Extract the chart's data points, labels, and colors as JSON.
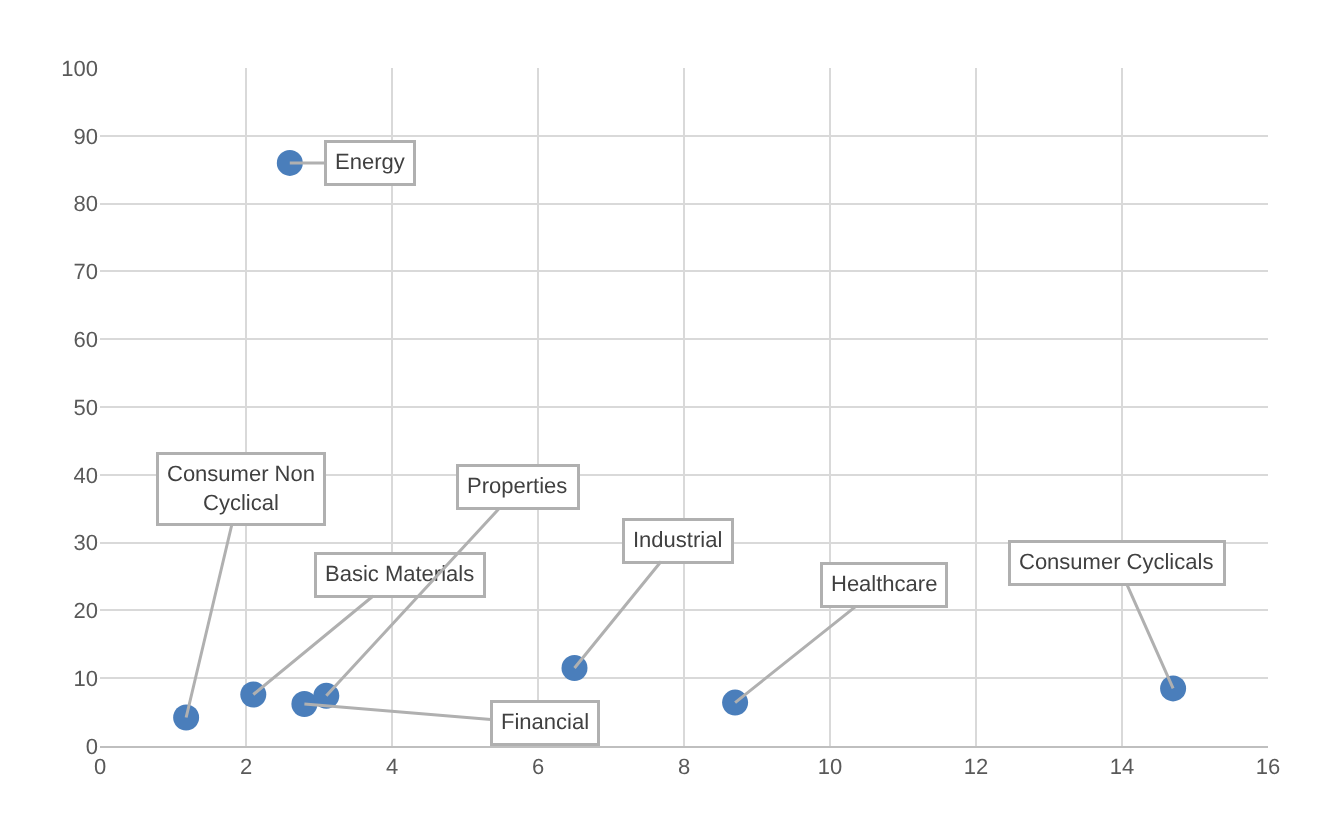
{
  "chart_data": {
    "type": "scatter",
    "marker": "circle",
    "grid": true,
    "xlim": [
      0,
      16
    ],
    "xticks": [
      0,
      2,
      4,
      6,
      8,
      10,
      12,
      14,
      16
    ],
    "ylim": [
      0,
      100
    ],
    "yticks": [
      0,
      10,
      20,
      30,
      40,
      50,
      60,
      70,
      80,
      90,
      100
    ],
    "series": [
      {
        "color": "#4a7ebb",
        "x": [
          2.6,
          1.18,
          2.1,
          2.8,
          3.1,
          6.5,
          8.7,
          14.7
        ],
        "values": [
          86,
          4.2,
          7.6,
          6.2,
          7.4,
          11.5,
          6.4,
          8.5
        ]
      }
    ],
    "annotations": [
      {
        "text": "Energy",
        "x": 2.6,
        "y": 86
      },
      {
        "text": "Consumer Non Cyclical",
        "x": 1.18,
        "y": 4.2
      },
      {
        "text": "Basic Materials",
        "x": 2.1,
        "y": 7.6
      },
      {
        "text": "Financial",
        "x": 2.8,
        "y": 6.2
      },
      {
        "text": "Properties",
        "x": 3.1,
        "y": 7.4
      },
      {
        "text": "Industrial",
        "x": 6.5,
        "y": 11.5
      },
      {
        "text": "Healthcare",
        "x": 8.7,
        "y": 6.4
      },
      {
        "text": "Consumer Cyclicals",
        "x": 14.7,
        "y": 8.5
      }
    ]
  }
}
